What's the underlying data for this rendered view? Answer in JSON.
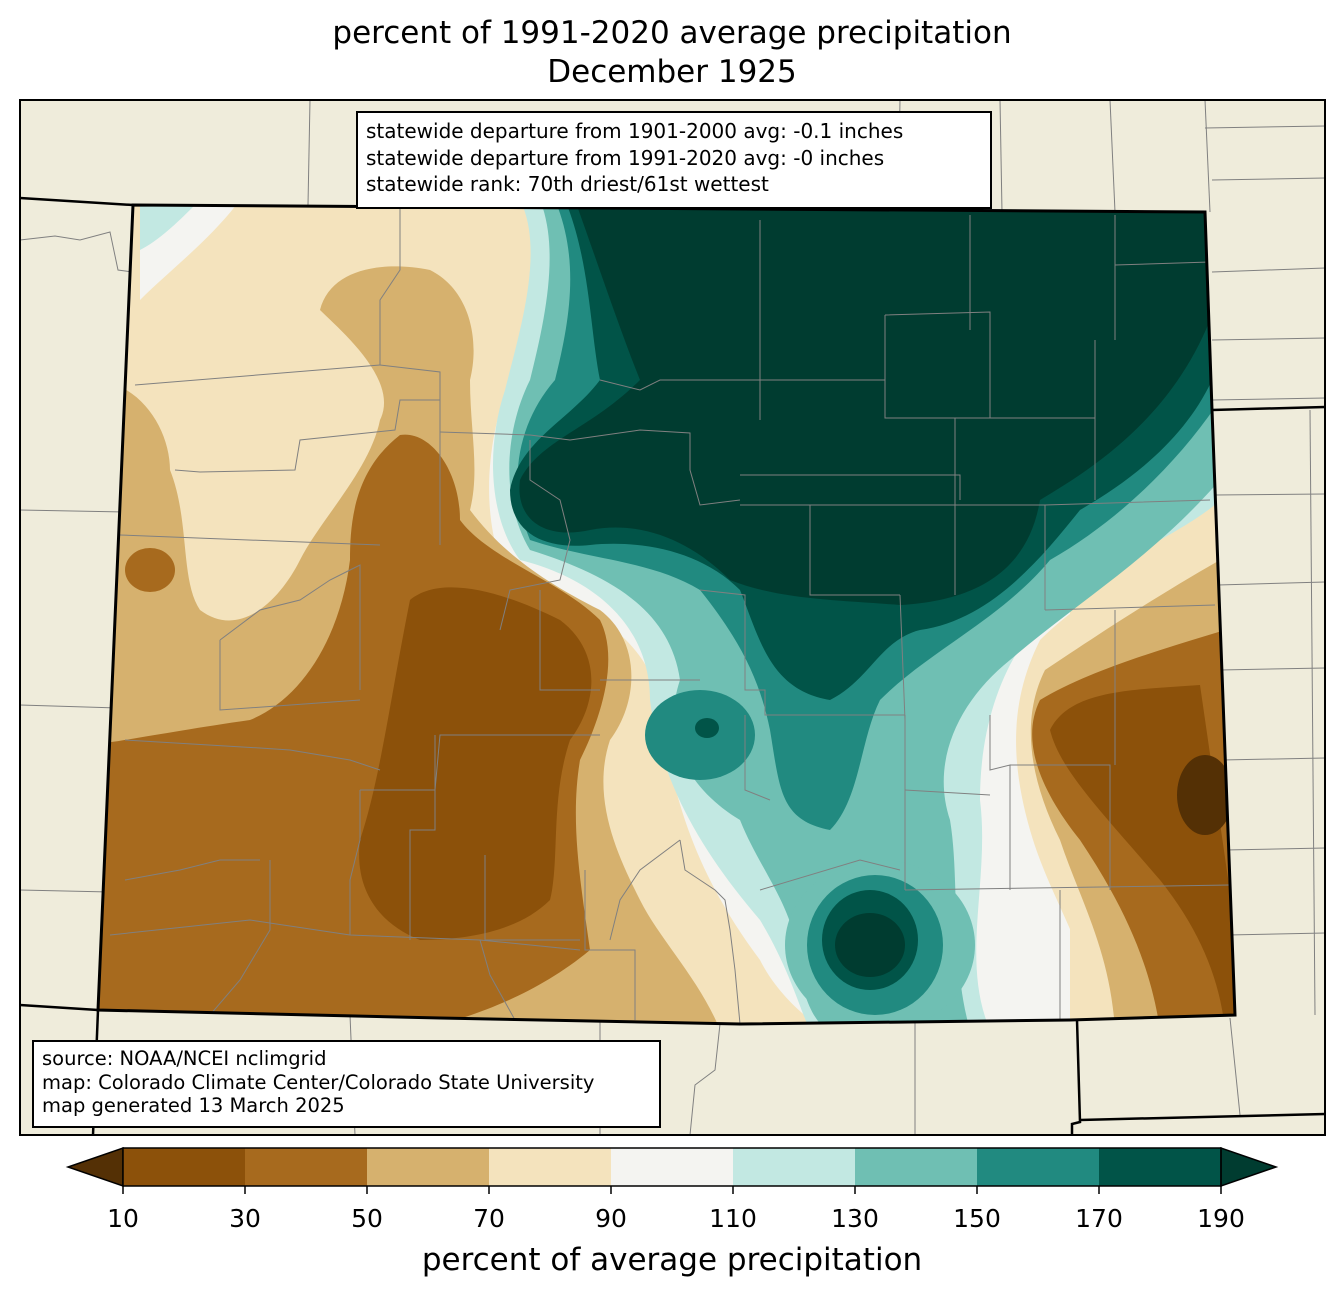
{
  "title": {
    "line1": "percent of 1991-2020 average precipitation",
    "line2": "December 1925"
  },
  "stats_box": {
    "line1": "statewide departure from 1901-2000 avg: -0.1 inches",
    "line2": "statewide departure from 1991-2020 avg: -0 inches",
    "line3": "statewide rank: 70th driest/61st wettest"
  },
  "source_box": {
    "line1": "source: NOAA/NCEI nclimgrid",
    "line2": "map: Colorado Climate Center/Colorado State University",
    "line3": "map generated 13 March 2025"
  },
  "colorbar": {
    "label": "percent of average precipitation",
    "ticks": [
      "10",
      "30",
      "50",
      "70",
      "90",
      "110",
      "130",
      "150",
      "170",
      "190"
    ],
    "under_color": "#543005",
    "over_color": "#003c30",
    "colors": [
      "#8c510a",
      "#a76a1e",
      "#d6b16e",
      "#f4e3bd",
      "#f4f4f1",
      "#c2e8e2",
      "#6fbfb3",
      "#218a80",
      "#015448"
    ]
  },
  "map": {
    "land_color": "#efecdb",
    "state_border_color": "#000000",
    "county_border_color": "#808080"
  }
}
